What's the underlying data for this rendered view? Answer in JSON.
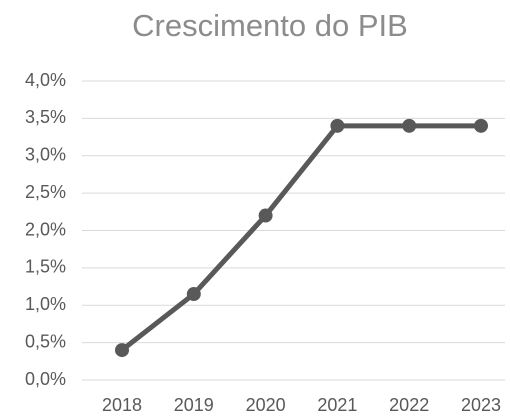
{
  "chart_data": {
    "type": "line",
    "title": "Crescimento do PIB",
    "categories": [
      "2018",
      "2019",
      "2020",
      "2021",
      "2022",
      "2023"
    ],
    "values": [
      0.4,
      1.15,
      2.2,
      3.4,
      3.4,
      3.4
    ],
    "color": "#595959",
    "ylim": [
      0,
      4
    ],
    "yticks": [
      {
        "value": 0,
        "label": "0,0%"
      },
      {
        "value": 0.5,
        "label": "0,5%"
      },
      {
        "value": 1,
        "label": "1,0%"
      },
      {
        "value": 1.5,
        "label": "1,5%"
      },
      {
        "value": 2,
        "label": "2,0%"
      },
      {
        "value": 2.5,
        "label": "2,5%"
      },
      {
        "value": 3,
        "label": "3,0%"
      },
      {
        "value": 3.5,
        "label": "3,5%"
      },
      {
        "value": 4,
        "label": "4,0%"
      }
    ],
    "grid": true
  }
}
